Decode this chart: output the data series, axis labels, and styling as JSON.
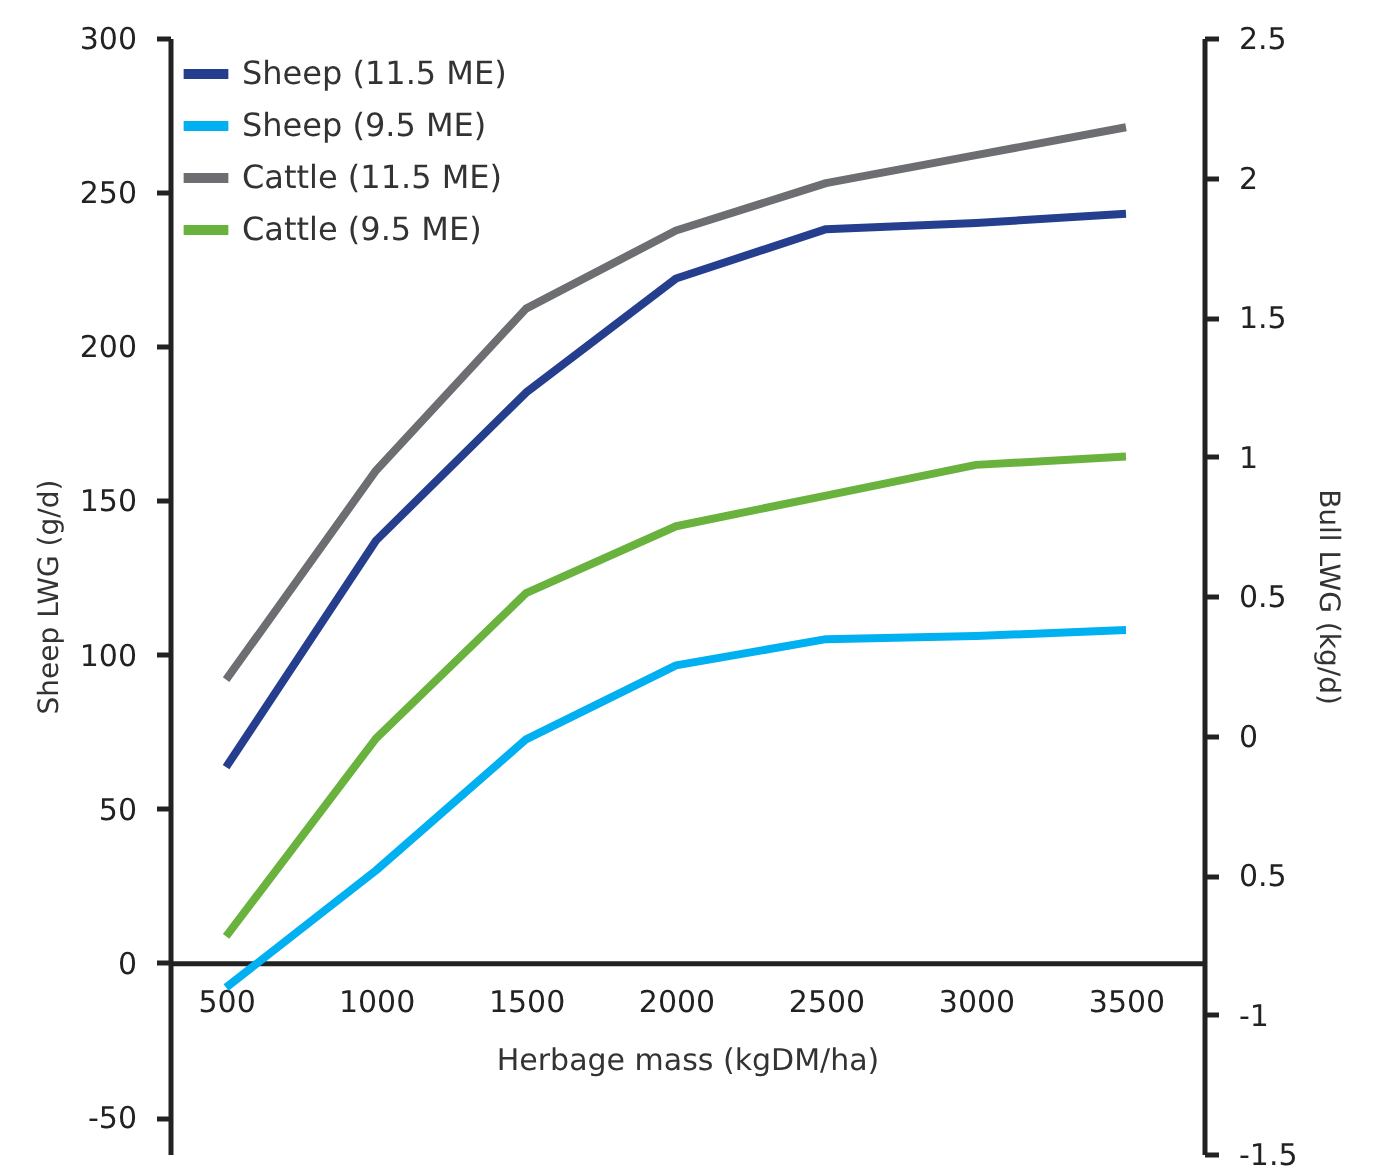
{
  "chart_data": {
    "type": "line",
    "xlabel": "Herbage mass (kgDM/ha)",
    "ylabel": "Sheep LWG (g/d)",
    "y2label": "Bull LWG (kg/d)",
    "x": [
      500,
      1000,
      1500,
      2000,
      2500,
      3000,
      3500
    ],
    "xlim": [
      313,
      3760
    ],
    "xticks": [
      500,
      1000,
      1500,
      2000,
      2500,
      3000,
      3500
    ],
    "ylim": [
      -62,
      300
    ],
    "yticks": [
      -50,
      0,
      50,
      100,
      150,
      200,
      250,
      300
    ],
    "y2lim": [
      -1.5,
      2.5
    ],
    "y2ticks": [
      -1.5,
      -1,
      {
        "value": -0.5,
        "label": "0.5"
      },
      0,
      0.5,
      1,
      1.5,
      2,
      2.5
    ],
    "series": [
      {
        "name": "Sheep (11.5 ME)",
        "color": "#253f8e",
        "values": [
          63.5,
          137,
          185,
          222,
          238,
          240,
          243
        ]
      },
      {
        "name": "Sheep (9.5 ME)",
        "color": "#00b0f0",
        "values": [
          -8,
          30,
          72.5,
          96.5,
          105,
          106,
          108
        ]
      },
      {
        "name": "Cattle (11.5 ME)",
        "color": "#6d6e71",
        "axis": "y2",
        "values": [
          0.2,
          0.95,
          1.53,
          1.81,
          1.98,
          2.08,
          2.18
        ]
      },
      {
        "name": "Cattle (9.5 ME)",
        "color": "#6ab23e",
        "axis": "y2",
        "values": [
          -0.72,
          -0.01,
          0.51,
          0.75,
          0.86,
          0.97,
          1.0
        ]
      }
    ],
    "legend": "top left",
    "grid": false,
    "marker": "none",
    "line_style": "solid"
  }
}
